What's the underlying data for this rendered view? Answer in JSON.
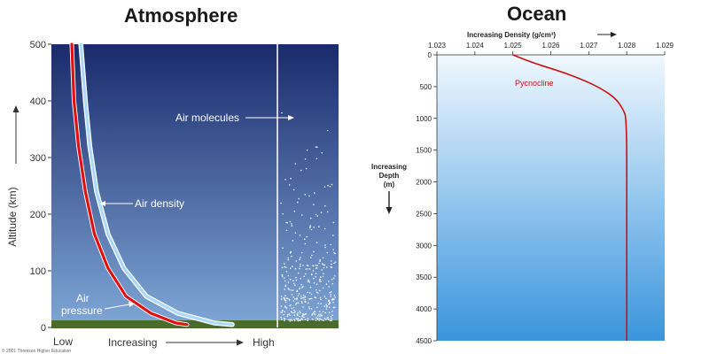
{
  "chart_data": [
    {
      "type": "line",
      "title": "Atmosphere",
      "xlabel": "Increasing",
      "x_low_label": "Low",
      "x_high_label": "High",
      "ylabel": "Altitude (km)",
      "ylim": [
        0,
        500
      ],
      "y_ticks": [
        "0",
        "100",
        "200",
        "300",
        "400",
        "500"
      ],
      "series": [
        {
          "name": "Air density",
          "color": "#a8d8ff",
          "x": [
            0.13,
            0.15,
            0.17,
            0.2,
            0.25,
            0.32,
            0.42,
            0.56,
            0.72,
            0.8
          ],
          "y": [
            500,
            400,
            320,
            240,
            165,
            105,
            55,
            25,
            8,
            5
          ]
        },
        {
          "name": "Air pressure",
          "color": "#e01010",
          "x": [
            0.09,
            0.1,
            0.12,
            0.15,
            0.19,
            0.25,
            0.33,
            0.44,
            0.55,
            0.6
          ],
          "y": [
            500,
            400,
            320,
            240,
            165,
            105,
            55,
            25,
            8,
            5
          ]
        }
      ],
      "annotations": {
        "air_molecules": "Air molecules",
        "air_density": "Air density",
        "air_pressure_line1": "Air",
        "air_pressure_line2": "pressure"
      },
      "copyright": "© 2001 Thomson Higher Education",
      "colors": {
        "sky_top": "#1a2a6c",
        "sky_bottom": "#7fa7d6",
        "ground": "#4a6b2a"
      }
    },
    {
      "type": "line",
      "title": "Ocean",
      "xlabel": "Increasing Density (g/cm³)",
      "x_ticks": [
        "1.023",
        "1.024",
        "1.025",
        "1.026",
        "1.027",
        "1.028",
        "1.029"
      ],
      "xlim": [
        1.023,
        1.029
      ],
      "ylabel_lines": [
        "Increasing",
        "Depth",
        "(m)"
      ],
      "ylim": [
        0,
        4500
      ],
      "y_ticks": [
        "0",
        "500",
        "1000",
        "1500",
        "2000",
        "2500",
        "3000",
        "3500",
        "4000",
        "4500"
      ],
      "series": [
        {
          "name": "Pycnocline",
          "color": "#cc1111",
          "x": [
            1.025,
            1.0255,
            1.0262,
            1.0268,
            1.0273,
            1.0277,
            1.0279,
            1.028,
            1.028,
            1.028
          ],
          "y": [
            0,
            120,
            250,
            380,
            520,
            680,
            850,
            1000,
            2500,
            4500
          ]
        }
      ],
      "colors": {
        "water_top": "#f0f8fe",
        "water_bottom": "#3a95dd"
      }
    }
  ]
}
